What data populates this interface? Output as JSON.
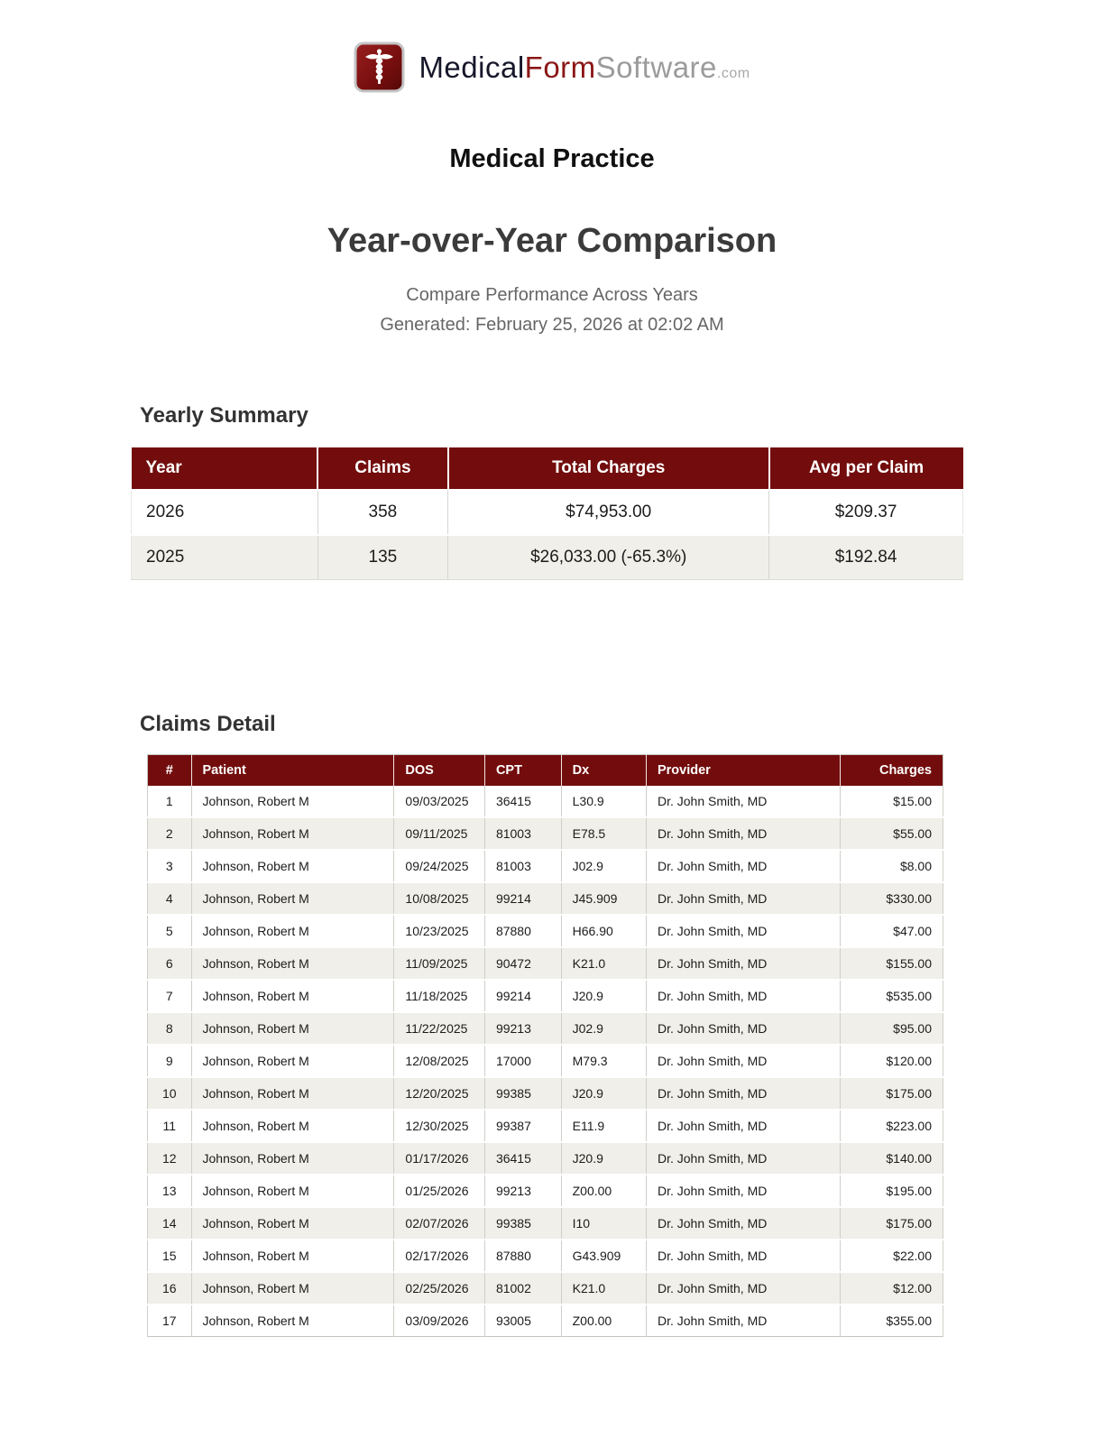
{
  "logo": {
    "medical": "Medical",
    "form": "Form",
    "software": "Software",
    "tld": ".com",
    "icon": "caduceus-icon"
  },
  "header": {
    "practice_name": "Medical Practice",
    "report_title": "Year-over-Year Comparison",
    "subtitle": "Compare Performance Across Years",
    "generated": "Generated: February 25, 2026 at 02:02 AM"
  },
  "colors": {
    "header_red": "#730d0d",
    "alt_row_bg": "#f0efe9",
    "brand_red": "#8b1717"
  },
  "yearly_summary": {
    "heading": "Yearly Summary",
    "columns": [
      "Year",
      "Claims",
      "Total Charges",
      "Avg per Claim"
    ],
    "rows": [
      [
        "2026",
        "358",
        "$74,953.00",
        "$209.37"
      ],
      [
        "2025",
        "135",
        "$26,033.00 (-65.3%)",
        "$192.84"
      ]
    ]
  },
  "claims_detail": {
    "heading": "Claims Detail",
    "columns": [
      "#",
      "Patient",
      "DOS",
      "CPT",
      "Dx",
      "Provider",
      "Charges"
    ],
    "rows": [
      [
        "1",
        "Johnson, Robert M",
        "09/03/2025",
        "36415",
        "L30.9",
        "Dr. John Smith, MD",
        "$15.00"
      ],
      [
        "2",
        "Johnson, Robert M",
        "09/11/2025",
        "81003",
        "E78.5",
        "Dr. John Smith, MD",
        "$55.00"
      ],
      [
        "3",
        "Johnson, Robert M",
        "09/24/2025",
        "81003",
        "J02.9",
        "Dr. John Smith, MD",
        "$8.00"
      ],
      [
        "4",
        "Johnson, Robert M",
        "10/08/2025",
        "99214",
        "J45.909",
        "Dr. John Smith, MD",
        "$330.00"
      ],
      [
        "5",
        "Johnson, Robert M",
        "10/23/2025",
        "87880",
        "H66.90",
        "Dr. John Smith, MD",
        "$47.00"
      ],
      [
        "6",
        "Johnson, Robert M",
        "11/09/2025",
        "90472",
        "K21.0",
        "Dr. John Smith, MD",
        "$155.00"
      ],
      [
        "7",
        "Johnson, Robert M",
        "11/18/2025",
        "99214",
        "J20.9",
        "Dr. John Smith, MD",
        "$535.00"
      ],
      [
        "8",
        "Johnson, Robert M",
        "11/22/2025",
        "99213",
        "J02.9",
        "Dr. John Smith, MD",
        "$95.00"
      ],
      [
        "9",
        "Johnson, Robert M",
        "12/08/2025",
        "17000",
        "M79.3",
        "Dr. John Smith, MD",
        "$120.00"
      ],
      [
        "10",
        "Johnson, Robert M",
        "12/20/2025",
        "99385",
        "J20.9",
        "Dr. John Smith, MD",
        "$175.00"
      ],
      [
        "11",
        "Johnson, Robert M",
        "12/30/2025",
        "99387",
        "E11.9",
        "Dr. John Smith, MD",
        "$223.00"
      ],
      [
        "12",
        "Johnson, Robert M",
        "01/17/2026",
        "36415",
        "J20.9",
        "Dr. John Smith, MD",
        "$140.00"
      ],
      [
        "13",
        "Johnson, Robert M",
        "01/25/2026",
        "99213",
        "Z00.00",
        "Dr. John Smith, MD",
        "$195.00"
      ],
      [
        "14",
        "Johnson, Robert M",
        "02/07/2026",
        "99385",
        "I10",
        "Dr. John Smith, MD",
        "$175.00"
      ],
      [
        "15",
        "Johnson, Robert M",
        "02/17/2026",
        "87880",
        "G43.909",
        "Dr. John Smith, MD",
        "$22.00"
      ],
      [
        "16",
        "Johnson, Robert M",
        "02/25/2026",
        "81002",
        "K21.0",
        "Dr. John Smith, MD",
        "$12.00"
      ],
      [
        "17",
        "Johnson, Robert M",
        "03/09/2026",
        "93005",
        "Z00.00",
        "Dr. John Smith, MD",
        "$355.00"
      ]
    ]
  }
}
